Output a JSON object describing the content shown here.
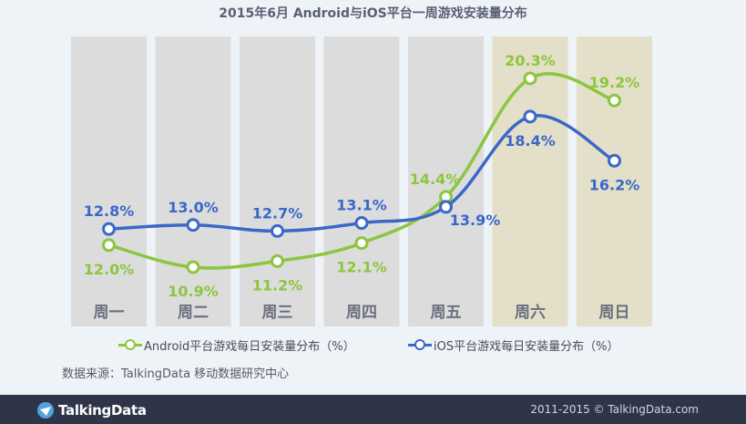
{
  "title": "2015年6月 Android与iOS平台一周游戏安装量分布",
  "chart_data": {
    "type": "line",
    "title": "2015年6月 Android与iOS平台一周游戏安装量分布",
    "categories": [
      "周一",
      "周二",
      "周三",
      "周四",
      "周五",
      "周六",
      "周日"
    ],
    "ylim": [
      8,
      22
    ],
    "grid": false,
    "legend_position": "bottom",
    "series": [
      {
        "name": "Android平台游戏每日安装量分布（%）",
        "color": "#8cc63f",
        "values": [
          12.0,
          10.9,
          11.2,
          12.1,
          14.4,
          20.3,
          19.2
        ],
        "labels": [
          "12.0%",
          "10.9%",
          "11.2%",
          "12.1%",
          "14.4%",
          "20.3%",
          "19.2%"
        ]
      },
      {
        "name": "iOS平台游戏每日安装量分布（%）",
        "color": "#3a68c9",
        "values": [
          12.8,
          13.0,
          12.7,
          13.1,
          13.9,
          18.4,
          16.2
        ],
        "labels": [
          "12.8%",
          "13.0%",
          "12.7%",
          "13.1%",
          "13.9%",
          "18.4%",
          "16.2%"
        ]
      }
    ],
    "weekday_color": "#dcdcdc",
    "weekend_color": "#e4dfc8"
  },
  "legend": {
    "android": "Android平台游戏每日安装量分布（%）",
    "ios": "iOS平台游戏每日安装量分布（%）"
  },
  "source_note": "数据来源：TalkingData 移动数据研究中心",
  "footer": {
    "brand": "TalkingData",
    "copyright": "2011-2015 © TalkingData.com"
  }
}
